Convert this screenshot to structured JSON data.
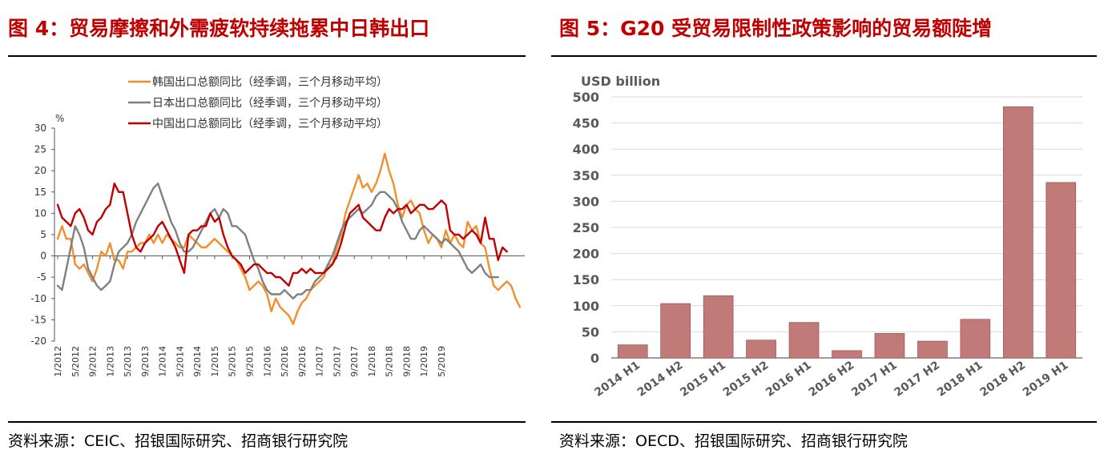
{
  "left": {
    "title": "图 4：贸易摩擦和外需疲软持续拖累中日韩出口",
    "source": "资料来源：CEIC、招银国际研究、招商银行研究院",
    "chart_data": {
      "type": "line",
      "ylabel": "%",
      "ylim": [
        -20,
        30
      ],
      "yticks": [
        "30",
        "25",
        "20",
        "15",
        "10",
        "5",
        "0",
        "-5",
        "-10",
        "-15",
        "-20"
      ],
      "grid": false,
      "legend": "top-center",
      "x_start": "2012-01",
      "x_tick_labels": [
        "1/2012",
        "5/2012",
        "9/2012",
        "1/2013",
        "5/2013",
        "9/2013",
        "1/2014",
        "5/2014",
        "9/2014",
        "1/2015",
        "5/2015",
        "9/2015",
        "1/2016",
        "5/2016",
        "9/2016",
        "1/2017",
        "5/2017",
        "9/2017",
        "1/2018",
        "5/2018",
        "9/2018",
        "1/2019",
        "5/2019"
      ],
      "series": [
        {
          "name": "韩国出口总额同比（经季调，三个月移动平均）",
          "color": "#f28e2b",
          "values": [
            4,
            7,
            4,
            4,
            -2,
            -3,
            -2,
            -4,
            -6,
            -3,
            1,
            0,
            3,
            -1,
            -1,
            -3,
            1,
            1,
            2,
            3,
            3,
            5,
            3,
            5,
            3,
            5,
            4,
            3,
            2,
            2,
            5,
            4,
            3,
            2,
            2,
            3,
            4,
            3,
            2,
            1,
            0,
            -1,
            -3,
            -5,
            -8,
            -7,
            -6,
            -7,
            -9,
            -13,
            -10,
            -12,
            -13,
            -14,
            -16,
            -13,
            -11,
            -10,
            -8,
            -7,
            -6,
            -5,
            -2,
            -2,
            2,
            5,
            10,
            13,
            16,
            19,
            16,
            17,
            15,
            17,
            20,
            24,
            20,
            17,
            12,
            9,
            12,
            13,
            11,
            10,
            6,
            3,
            5,
            4,
            2,
            6,
            3,
            5,
            3,
            2,
            8,
            6,
            7,
            3,
            2,
            -3,
            -7,
            -8,
            -7,
            -6,
            -7,
            -10,
            -12
          ]
        },
        {
          "name": "日本出口总额同比（经季调，三个月移动平均）",
          "color": "#808080",
          "values": [
            -7,
            -8,
            -3,
            2,
            7,
            5,
            2,
            -3,
            -5,
            -7,
            -8,
            -7,
            -6,
            -2,
            1,
            2,
            3,
            5,
            8,
            10,
            12,
            14,
            16,
            17,
            14,
            11,
            8,
            6,
            3,
            1,
            1,
            2,
            4,
            6,
            8,
            10,
            11,
            9,
            11,
            10,
            7,
            7,
            6,
            5,
            2,
            -1,
            -3,
            -6,
            -8,
            -9,
            -9,
            -9,
            -8,
            -9,
            -10,
            -9,
            -9,
            -8,
            -8,
            -6,
            -5,
            -4,
            -2,
            0,
            3,
            6,
            8,
            9,
            10,
            11,
            10,
            11,
            12,
            14,
            15,
            15,
            14,
            13,
            11,
            8,
            6,
            4,
            4,
            6,
            7,
            6,
            5,
            4,
            3,
            4,
            3,
            2,
            1,
            -1,
            -3,
            -4,
            -3,
            -2,
            -4,
            -5,
            -5,
            -5
          ]
        },
        {
          "name": "中国出口总额同比（经季调，三个月移动平均）",
          "color": "#c00000",
          "values": [
            12,
            9,
            8,
            7,
            10,
            11,
            9,
            6,
            5,
            8,
            9,
            11,
            12,
            17,
            15,
            15,
            10,
            5,
            2,
            1,
            3,
            4,
            5,
            7,
            8,
            6,
            4,
            2,
            -1,
            -4,
            5,
            6,
            6,
            7,
            7,
            10,
            8,
            9,
            5,
            2,
            0,
            -1,
            -2,
            -4,
            -3,
            -2,
            -2,
            -3,
            -4,
            -4,
            -5,
            -5,
            -6,
            -7,
            -4,
            -4,
            -3,
            -4,
            -3,
            -4,
            -4,
            -4,
            -3,
            -2,
            0,
            3,
            7,
            10,
            11,
            12,
            9,
            8,
            7,
            6,
            6,
            9,
            11,
            10,
            11,
            11,
            12,
            10,
            11,
            12,
            12,
            11,
            11,
            12,
            13,
            12,
            6,
            5,
            5,
            4,
            5,
            6,
            5,
            3,
            9,
            4,
            4,
            -1,
            2,
            1
          ]
        }
      ]
    }
  },
  "right": {
    "title": "图 5：G20 受贸易限制性政策影响的贸易额陡增",
    "source": "资料来源：OECD、招银国际研究、招商银行研究院",
    "chart_data": {
      "type": "bar",
      "ylabel": "USD billion",
      "ylim": [
        0,
        500
      ],
      "yticks": [
        "500",
        "450",
        "400",
        "350",
        "300",
        "250",
        "200",
        "150",
        "100",
        "50",
        "0"
      ],
      "grid": true,
      "color": "#c07b78",
      "categories": [
        "2014 H1",
        "2014 H2",
        "2015 H1",
        "2015 H2",
        "2016 H1",
        "2016 H2",
        "2017 H1",
        "2017 H2",
        "2018 H1",
        "2018 H2",
        "2019 H1"
      ],
      "values": [
        25,
        104,
        119,
        34,
        68,
        14,
        47,
        32,
        74,
        481,
        336
      ]
    }
  }
}
